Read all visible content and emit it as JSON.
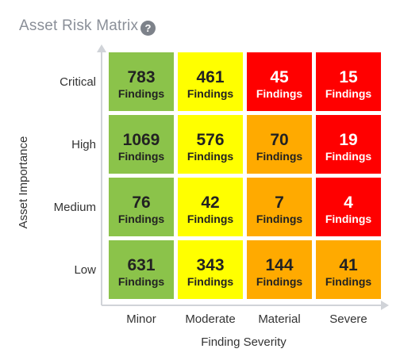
{
  "title": "Asset Risk Matrix",
  "help_icon": "question-circle-icon",
  "chart_data": {
    "type": "heatmap",
    "xlabel": "Finding Severity",
    "ylabel": "Asset Importance",
    "x_categories": [
      "Minor",
      "Moderate",
      "Material",
      "Severe"
    ],
    "y_categories": [
      "Critical",
      "High",
      "Medium",
      "Low"
    ],
    "unit_label": "Findings",
    "values": [
      [
        783,
        461,
        45,
        15
      ],
      [
        1069,
        576,
        70,
        19
      ],
      [
        76,
        42,
        7,
        4
      ],
      [
        631,
        343,
        144,
        41
      ]
    ],
    "colors": [
      [
        "#8bc34a",
        "#ffff00",
        "#ff0000",
        "#ff0000"
      ],
      [
        "#8bc34a",
        "#ffff00",
        "#ffaa00",
        "#ff0000"
      ],
      [
        "#8bc34a",
        "#ffff00",
        "#ffaa00",
        "#ff0000"
      ],
      [
        "#8bc34a",
        "#ffff00",
        "#ffaa00",
        "#ffaa00"
      ]
    ],
    "text_colors": {
      "#8bc34a": "#222222",
      "#ffff00": "#222222",
      "#ffaa00": "#222222",
      "#ff0000": "#ffffff"
    },
    "axis_color": "#d0d3d8"
  }
}
